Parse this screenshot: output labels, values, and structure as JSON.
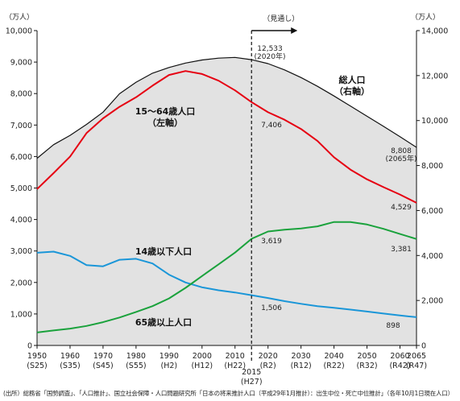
{
  "chart_data": {
    "type": "line",
    "x": [
      1950,
      1955,
      1960,
      1965,
      1970,
      1975,
      1980,
      1985,
      1990,
      1995,
      2000,
      2005,
      2010,
      2015,
      2020,
      2025,
      2030,
      2035,
      2040,
      2045,
      2050,
      2055,
      2060,
      2065
    ],
    "x_ticks": [
      {
        "year": 1950,
        "label": "1950",
        "era": "(S25)"
      },
      {
        "year": 1960,
        "label": "1960",
        "era": "(S35)"
      },
      {
        "year": 1970,
        "label": "1970",
        "era": "(S45)"
      },
      {
        "year": 1980,
        "label": "1980",
        "era": "(S55)"
      },
      {
        "year": 1990,
        "label": "1990",
        "era": "(H2)"
      },
      {
        "year": 2000,
        "label": "2000",
        "era": "(H12)"
      },
      {
        "year": 2010,
        "label": "2010",
        "era": "(H22)"
      },
      {
        "year": 2020,
        "label": "2020",
        "era": "(R2)"
      },
      {
        "year": 2030,
        "label": "2030",
        "era": "(R12)"
      },
      {
        "year": 2040,
        "label": "2040",
        "era": "(R22)"
      },
      {
        "year": 2050,
        "label": "2050",
        "era": "(R32)"
      },
      {
        "year": 2060,
        "label": "2060",
        "era": "(R42)"
      },
      {
        "year": 2065,
        "label": "2065",
        "era": "(R47)"
      }
    ],
    "marker_2015": {
      "year": 2015,
      "label": "2015",
      "era": "(H27)"
    },
    "projection_label": "（見通し）",
    "left_axis": {
      "unit": "（万人）",
      "ylim": [
        0,
        10000
      ],
      "ticks": [
        "0",
        "1,000",
        "2,000",
        "3,000",
        "4,000",
        "5,000",
        "6,000",
        "7,000",
        "8,000",
        "9,000",
        "10,000"
      ]
    },
    "right_axis": {
      "unit": "（万人）",
      "ylim": [
        0,
        14000
      ],
      "ticks": [
        "0",
        "2,000",
        "4,000",
        "6,000",
        "8,000",
        "10,000",
        "12,000",
        "14,000"
      ]
    },
    "series": [
      {
        "name": "総人口",
        "axis": "right",
        "color": "#111111",
        "fill": "#e2e2e2",
        "label_lines": [
          "総人口",
          "（右軸）"
        ],
        "values": [
          8320,
          8928,
          9342,
          9828,
          10372,
          11194,
          11706,
          12105,
          12361,
          12557,
          12693,
          12777,
          12806,
          12709,
          12533,
          12254,
          11913,
          11522,
          11092,
          10642,
          10192,
          9744,
          9284,
          8808
        ]
      },
      {
        "name": "15～64歳人口",
        "axis": "left",
        "color": "#e60012",
        "label_lines": [
          "15～64歳人口",
          "（左軸）"
        ],
        "values": [
          4966,
          5473,
          6000,
          6744,
          7212,
          7581,
          7883,
          8251,
          8590,
          8716,
          8622,
          8409,
          8103,
          7728,
          7406,
          7170,
          6875,
          6494,
          5978,
          5584,
          5275,
          5028,
          4793,
          4529
        ]
      },
      {
        "name": "14歳以下人口",
        "axis": "left",
        "color": "#1a96d8",
        "label_lines": [
          "14歳以下人口"
        ],
        "values": [
          2943,
          2980,
          2843,
          2553,
          2515,
          2722,
          2751,
          2603,
          2249,
          2001,
          1847,
          1752,
          1684,
          1595,
          1506,
          1407,
          1321,
          1246,
          1194,
          1138,
          1077,
          1012,
          951,
          898
        ]
      },
      {
        "name": "65歳以上人口",
        "axis": "left",
        "color": "#1aa23c",
        "label_lines": [
          "65歳以上人口"
        ],
        "values": [
          411,
          475,
          535,
          618,
          739,
          887,
          1065,
          1247,
          1493,
          1828,
          2204,
          2576,
          2948,
          3387,
          3619,
          3677,
          3716,
          3782,
          3921,
          3919,
          3841,
          3704,
          3540,
          3381
        ]
      }
    ],
    "data_labels": [
      {
        "series": "総人口",
        "year": 2020,
        "lines": [
          "12,533",
          "(2020年)"
        ]
      },
      {
        "series": "総人口",
        "year": 2065,
        "lines": [
          "8,808",
          "(2065年)"
        ]
      },
      {
        "series": "15～64歳人口",
        "year": 2020,
        "lines": [
          "7,406"
        ]
      },
      {
        "series": "15～64歳人口",
        "year": 2065,
        "lines": [
          "4,529"
        ]
      },
      {
        "series": "65歳以上人口",
        "year": 2020,
        "lines": [
          "3,619"
        ]
      },
      {
        "series": "65歳以上人口",
        "year": 2065,
        "lines": [
          "3,381"
        ]
      },
      {
        "series": "14歳以下人口",
        "year": 2020,
        "lines": [
          "1,506"
        ]
      },
      {
        "series": "14歳以下人口",
        "year": 2065,
        "lines": [
          "898"
        ]
      }
    ],
    "grid": false,
    "source": "(出所）総務省「国勢調査」、「人口推計」、国立社会保障・人口問題研究所「日本の将来推計人口（平成29年1月推計）：出生中位・死亡中位推計」（各年10月1日現在人口）"
  }
}
